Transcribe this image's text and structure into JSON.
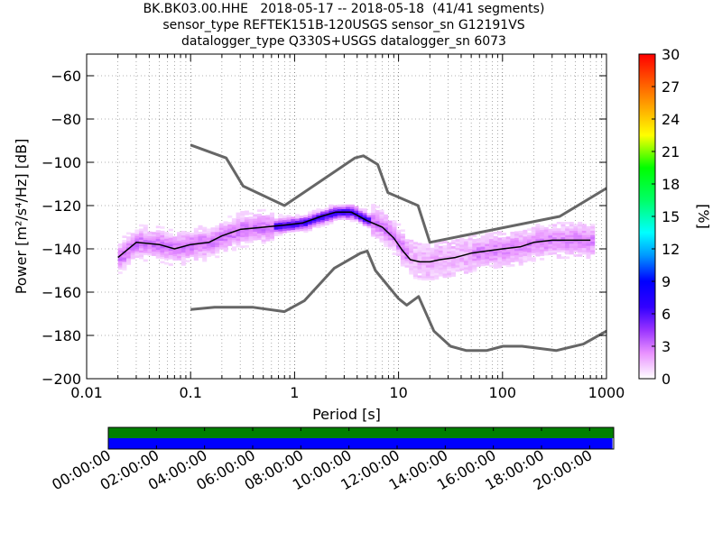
{
  "title": {
    "line1": "BK.BK03.00.HHE   2018-05-17 -- 2018-05-18  (41/41 segments)",
    "line2": "sensor_type REFTEK151B-120USGS sensor_sn G12191VS",
    "line3": "datalogger_type Q330S+USGS datalogger_sn 6073"
  },
  "chart_data": [
    {
      "type": "heatmap",
      "title": "",
      "xlabel": "Period [s]",
      "ylabel": "Power [m²/s⁴/Hz] [dB]",
      "x_scale": "log",
      "xlim": [
        0.01,
        1000
      ],
      "ylim": [
        -200,
        -50
      ],
      "x_ticks": [
        0.01,
        0.1,
        1,
        10,
        100,
        1000
      ],
      "x_tick_labels": [
        "0.01",
        "0.1",
        "1",
        "10",
        "100",
        "1000"
      ],
      "y_ticks": [
        -200,
        -180,
        -160,
        -140,
        -120,
        -100,
        -80,
        -60
      ],
      "y_tick_labels": [
        "−200",
        "−180",
        "−160",
        "−140",
        "−120",
        "−100",
        "−80",
        "−60"
      ],
      "grid": true,
      "colorbar": {
        "label": "[%]",
        "range": [
          0,
          30
        ],
        "ticks": [
          0,
          3,
          6,
          9,
          12,
          15,
          18,
          21,
          24,
          27,
          30
        ],
        "colormap": "pqlx"
      },
      "median_line": {
        "color": "#000000",
        "periods": [
          0.02,
          0.03,
          0.05,
          0.07,
          0.1,
          0.15,
          0.2,
          0.3,
          0.5,
          0.8,
          1.2,
          1.8,
          2.5,
          3.5,
          5,
          7,
          9,
          11,
          13,
          16,
          20,
          25,
          35,
          50,
          70,
          100,
          150,
          200,
          300,
          500,
          700
        ],
        "power_db": [
          -144,
          -137,
          -138,
          -140,
          -138,
          -137,
          -134,
          -131,
          -130,
          -129,
          -128,
          -125,
          -123,
          -123,
          -127,
          -130,
          -135,
          -141,
          -145,
          -146,
          -146,
          -145,
          -144,
          -142,
          -141,
          -140,
          -139,
          -137,
          -136,
          -136,
          -136
        ]
      },
      "noise_models": {
        "color": "#666666",
        "high": {
          "periods": [
            0.1,
            0.22,
            0.32,
            0.8,
            3.8,
            4.6,
            6.3,
            7.9,
            15.4,
            20,
            354.8,
            1000
          ],
          "power_db": [
            -92,
            -98,
            -111,
            -120,
            -98,
            -97,
            -101,
            -114,
            -120,
            -137,
            -125,
            -112
          ]
        },
        "low": {
          "periods": [
            0.1,
            0.17,
            0.4,
            0.8,
            1.24,
            2.4,
            4.3,
            5,
            6,
            10,
            12,
            15.6,
            21.9,
            31.6,
            45,
            70,
            101,
            154,
            328,
            600,
            1000
          ],
          "power_db": [
            -168,
            -167,
            -167,
            -169,
            -164,
            -149,
            -142,
            -141,
            -150,
            -163,
            -166,
            -162,
            -178,
            -185,
            -187,
            -187,
            -185,
            -185,
            -187,
            -184,
            -178
          ]
        }
      }
    },
    {
      "type": "timeline",
      "title": "",
      "x_tick_labels": [
        "00:00:00",
        "02:00:00",
        "04:00:00",
        "06:00:00",
        "08:00:00",
        "10:00:00",
        "12:00:00",
        "14:00:00",
        "16:00:00",
        "18:00:00",
        "20:00:00"
      ],
      "x_range_hours": [
        0,
        21
      ],
      "rows": [
        {
          "color": "#008000",
          "start_hour": 0,
          "end_hour": 21
        },
        {
          "color": "#0000ff",
          "start_hour": 0,
          "end_hour": 20.95
        }
      ]
    }
  ]
}
